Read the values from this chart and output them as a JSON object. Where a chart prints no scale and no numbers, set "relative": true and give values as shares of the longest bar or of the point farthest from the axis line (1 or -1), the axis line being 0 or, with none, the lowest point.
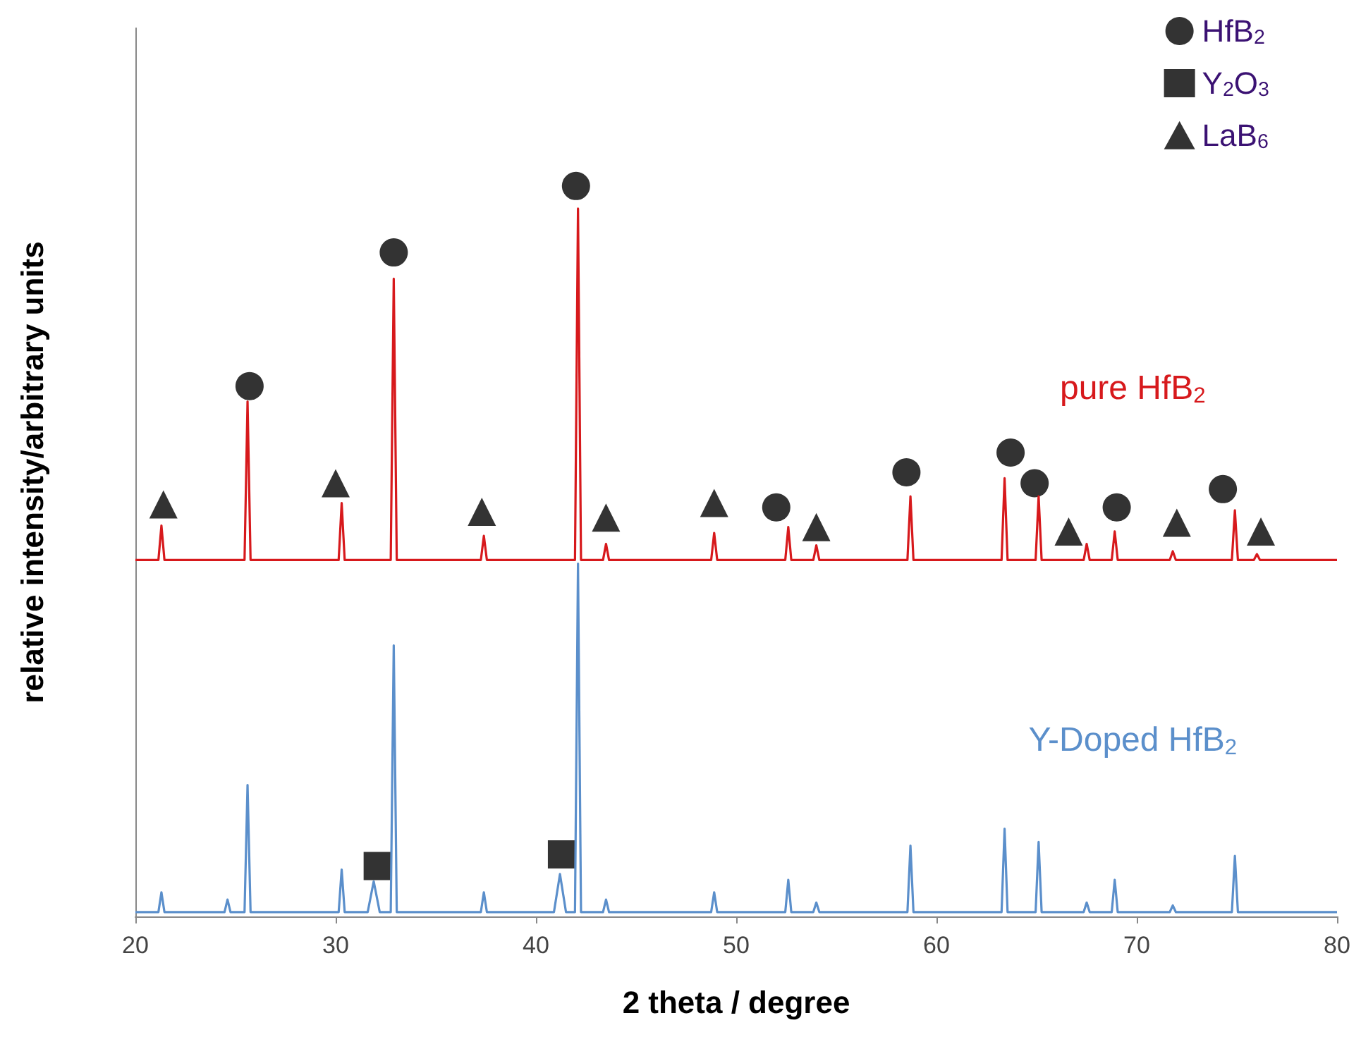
{
  "chart_data": {
    "type": "line",
    "relative": true,
    "xlabel": "2 theta / degree",
    "ylabel": "relative intensity/arbitrary units",
    "xlim": [
      20,
      80
    ],
    "xticks": [
      20,
      30,
      40,
      50,
      60,
      70,
      80
    ],
    "grid": false,
    "legend": "top right",
    "series": [
      {
        "name": "pure HfB$_{2}$",
        "color": "#d7191c",
        "x": [
          20,
          21.15,
          21.3,
          21.45,
          25.45,
          25.6,
          25.75,
          30.15,
          30.3,
          30.45,
          32.75,
          32.9,
          33.05,
          37.25,
          37.4,
          37.55,
          41.95,
          42.1,
          42.25,
          43.35,
          43.5,
          43.65,
          48.75,
          48.9,
          49.05,
          52.45,
          52.6,
          52.75,
          53.85,
          54.0,
          54.15,
          58.55,
          58.7,
          58.85,
          63.25,
          63.4,
          63.55,
          64.95,
          65.1,
          65.25,
          67.35,
          67.5,
          67.65,
          68.75,
          68.9,
          69.05,
          71.65,
          71.8,
          71.95,
          74.75,
          74.9,
          75.05,
          75.85,
          76.0,
          76.15,
          80
        ],
        "values": [
          0.488,
          0.488,
          0.535,
          0.488,
          0.488,
          0.705,
          0.488,
          0.488,
          0.566,
          0.488,
          0.488,
          0.873,
          0.488,
          0.488,
          0.521,
          0.488,
          0.488,
          0.969,
          0.488,
          0.488,
          0.51,
          0.488,
          0.488,
          0.525,
          0.488,
          0.488,
          0.533,
          0.488,
          0.488,
          0.508,
          0.488,
          0.488,
          0.575,
          0.488,
          0.488,
          0.6,
          0.488,
          0.488,
          0.575,
          0.488,
          0.488,
          0.51,
          0.488,
          0.488,
          0.527,
          0.488,
          0.488,
          0.5,
          0.488,
          0.488,
          0.556,
          0.488,
          0.488,
          0.496,
          0.488,
          0.488
        ]
      },
      {
        "name": "Y-Doped HfB$_{2}$",
        "color": "#5b8fcb",
        "x": [
          20,
          21.15,
          21.3,
          21.45,
          24.45,
          24.6,
          24.75,
          25.45,
          25.6,
          25.75,
          30.15,
          30.3,
          30.45,
          31.6,
          31.9,
          32.2,
          32.75,
          32.9,
          33.05,
          37.25,
          37.4,
          37.55,
          40.9,
          41.2,
          41.5,
          41.95,
          42.1,
          42.25,
          43.35,
          43.5,
          43.65,
          48.75,
          48.9,
          49.05,
          52.45,
          52.6,
          52.75,
          53.85,
          54.0,
          54.15,
          58.55,
          58.7,
          58.85,
          63.25,
          63.4,
          63.55,
          64.95,
          65.1,
          65.25,
          67.35,
          67.5,
          67.65,
          68.75,
          68.9,
          69.05,
          71.65,
          71.8,
          71.95,
          74.75,
          74.9,
          75.05,
          80
        ],
        "values": [
          0.006,
          0.006,
          0.033,
          0.006,
          0.006,
          0.023,
          0.006,
          0.006,
          0.18,
          0.006,
          0.006,
          0.064,
          0.006,
          0.006,
          0.048,
          0.006,
          0.006,
          0.371,
          0.006,
          0.006,
          0.033,
          0.006,
          0.006,
          0.058,
          0.006,
          0.006,
          0.483,
          0.006,
          0.006,
          0.023,
          0.006,
          0.006,
          0.033,
          0.006,
          0.006,
          0.05,
          0.006,
          0.006,
          0.019,
          0.006,
          0.006,
          0.097,
          0.006,
          0.006,
          0.12,
          0.006,
          0.006,
          0.102,
          0.006,
          0.006,
          0.019,
          0.006,
          0.006,
          0.05,
          0.006,
          0.006,
          0.015,
          0.006,
          0.006,
          0.083,
          0.006,
          0.006
        ]
      },
      {
        "name": "HfB$_{2}$",
        "type": "scatter",
        "marker": "circle",
        "color": "#000000",
        "x": [
          25.7,
          32.9,
          42.0,
          52.0,
          58.5,
          63.7,
          64.9,
          69.0,
          74.3
        ],
        "values": [
          0.726,
          0.909,
          1.0,
          0.56,
          0.608,
          0.635,
          0.593,
          0.56,
          0.585
        ]
      },
      {
        "name": "Y$_{2}$O$_{3}$",
        "type": "scatter",
        "marker": "square",
        "color": "#000000",
        "x": [
          32.1,
          41.3
        ],
        "values": [
          0.069,
          0.085
        ]
      },
      {
        "name": "LaB$_{6}$",
        "type": "scatter",
        "marker": "triangle",
        "color": "#000000",
        "x": [
          21.4,
          30.0,
          37.3,
          43.5,
          48.9,
          54.0,
          66.6,
          72.0,
          76.2
        ],
        "values": [
          0.564,
          0.593,
          0.554,
          0.546,
          0.566,
          0.533,
          0.527,
          0.539,
          0.527
        ]
      }
    ]
  }
}
